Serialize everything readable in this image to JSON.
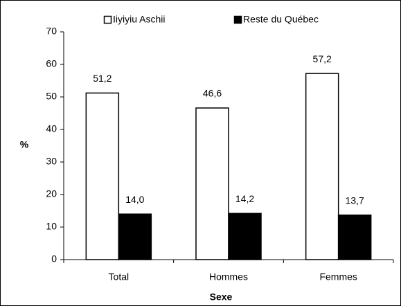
{
  "chart_data": {
    "type": "bar",
    "categories": [
      "Total",
      "Hommes",
      "Femmes"
    ],
    "series": [
      {
        "name": "Iiyiyiu Aschii",
        "color": "#ffffff",
        "values": [
          51.2,
          46.6,
          57.2
        ],
        "value_labels": [
          "51,2",
          "46,6",
          "57,2"
        ]
      },
      {
        "name": "Reste du Québec",
        "color": "#000000",
        "values": [
          14.0,
          14.2,
          13.7
        ],
        "value_labels": [
          "14,0",
          "14,2",
          "13,7"
        ]
      }
    ],
    "ylabel": "%",
    "xlabel": "Sexe",
    "ylim": [
      0,
      70
    ],
    "yticks": [
      0,
      10,
      20,
      30,
      40,
      50,
      60,
      70
    ],
    "grid": false,
    "legend": "top"
  }
}
